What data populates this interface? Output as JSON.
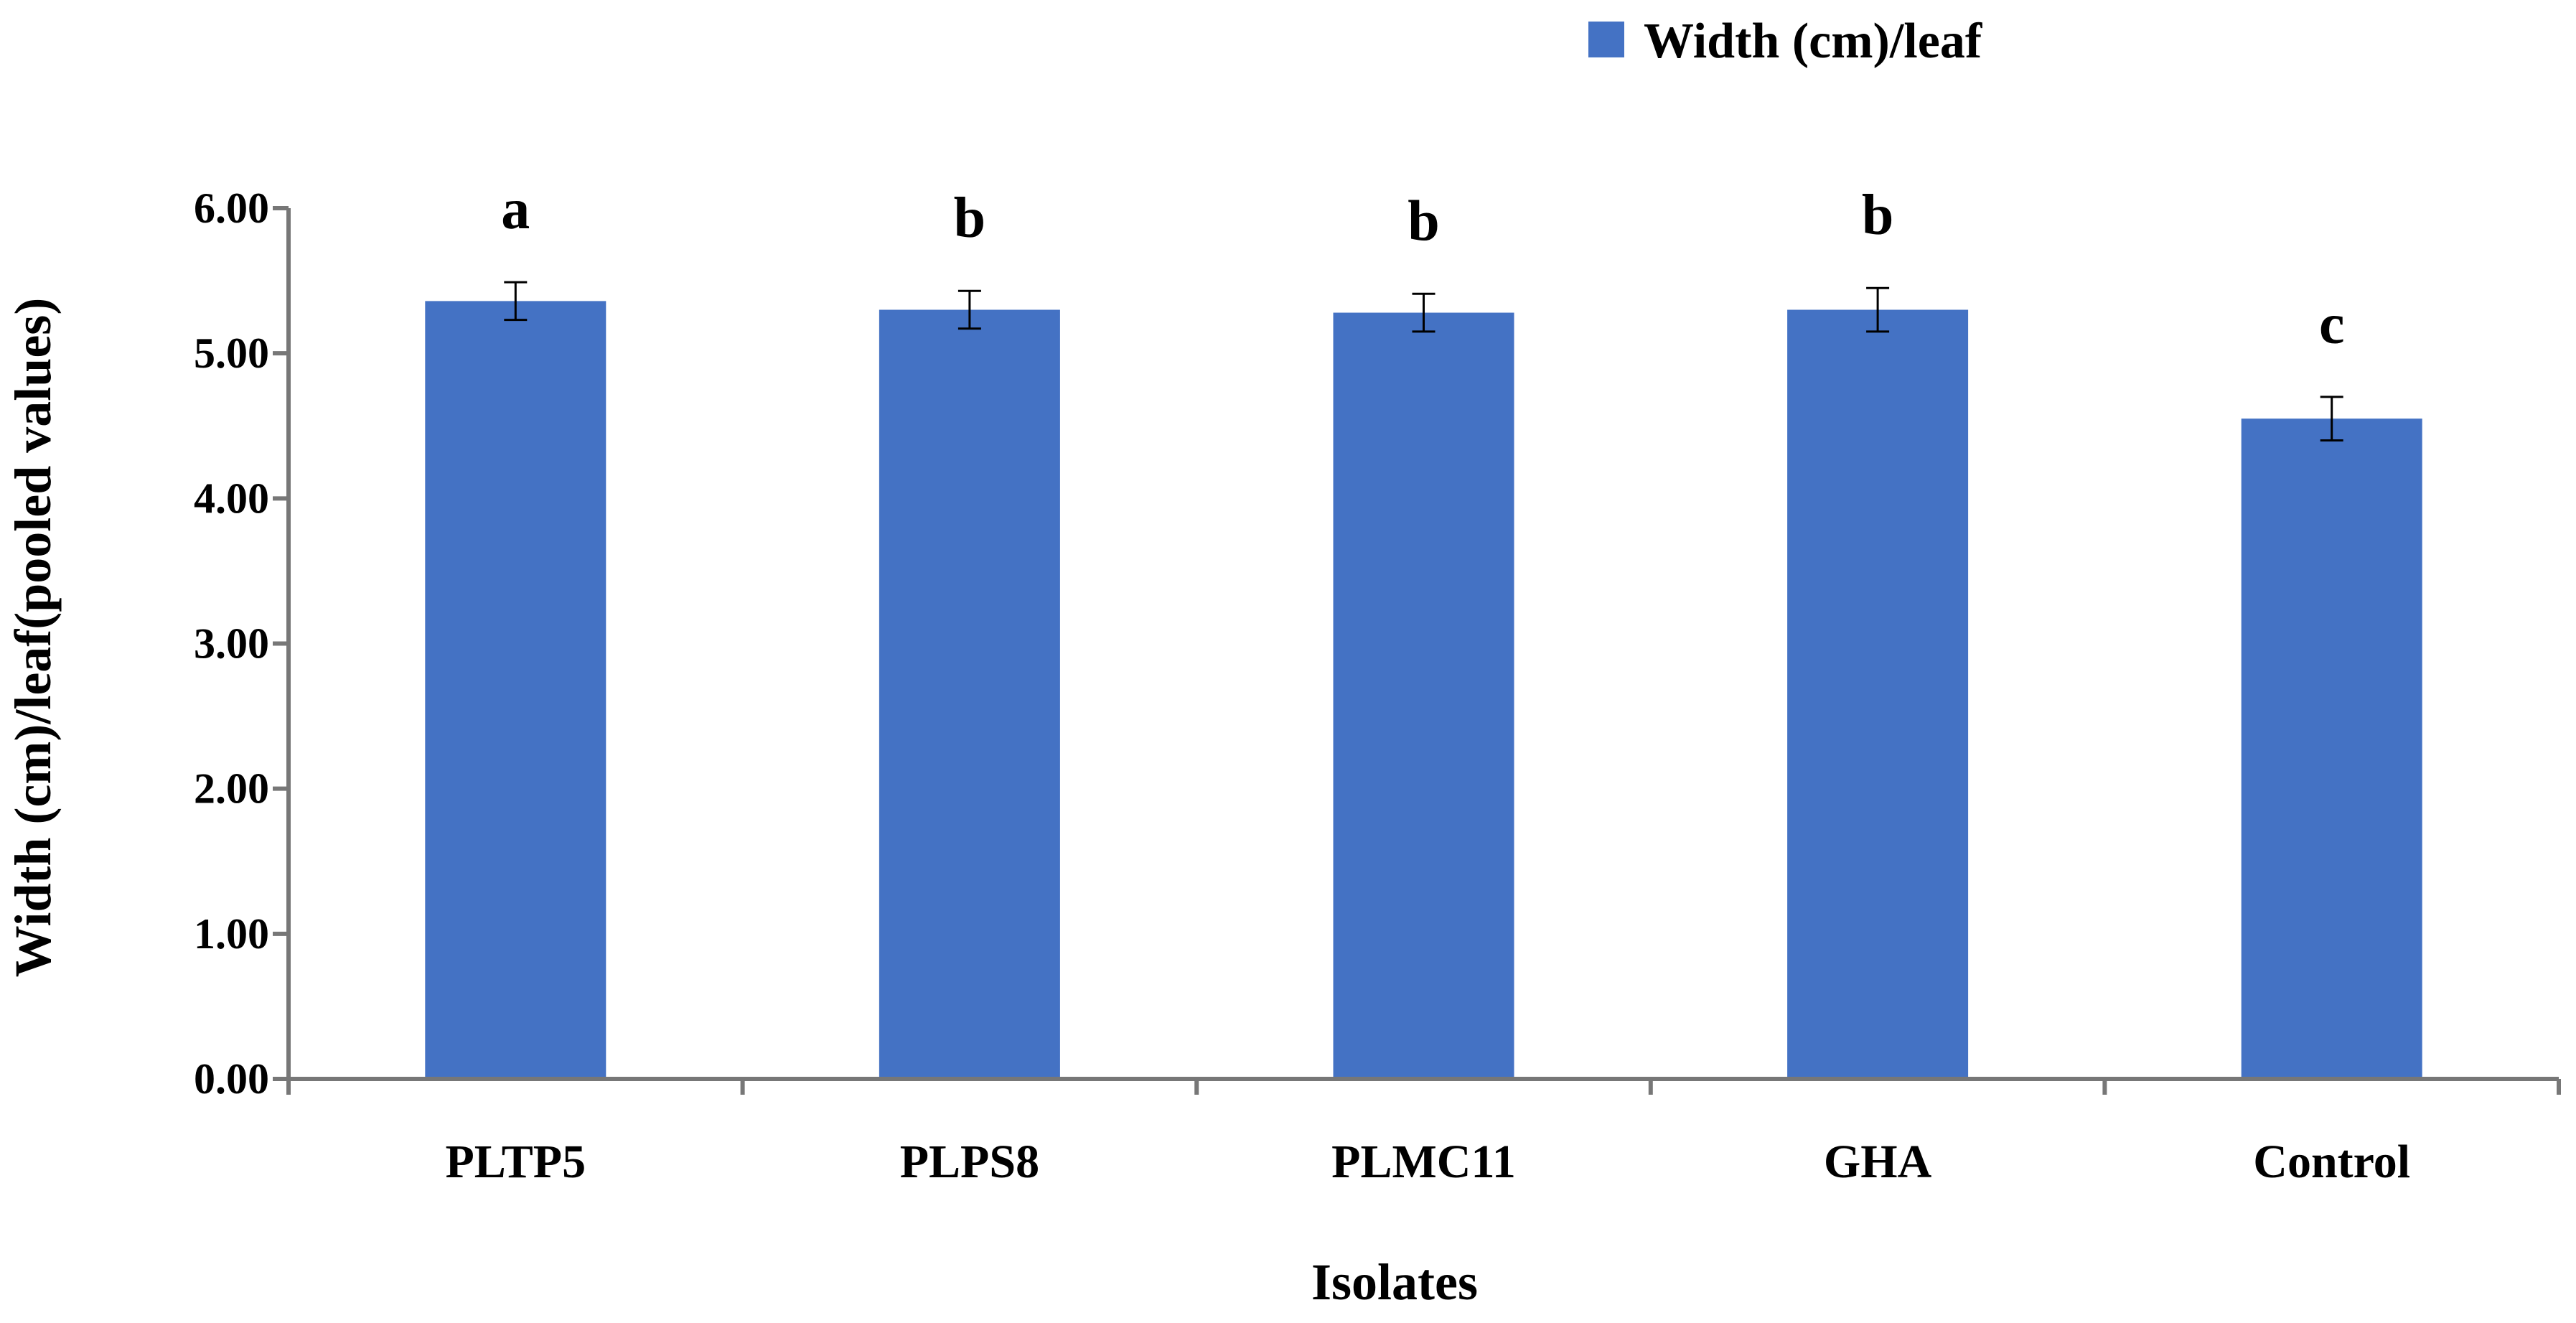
{
  "chart_data": {
    "type": "bar",
    "title": "",
    "xlabel": "Isolates",
    "ylabel": "Width (cm)/leaf(pooled values)",
    "ylim": [
      0,
      6
    ],
    "yticks": [
      "0.00",
      "1.00",
      "2.00",
      "3.00",
      "4.00",
      "5.00",
      "6.00"
    ],
    "grid": false,
    "legend_position": "top-right",
    "series": [
      {
        "name": "Width (cm)/leaf",
        "color": "#4472C4",
        "values": [
          5.36,
          5.3,
          5.28,
          5.3,
          4.55
        ],
        "errors": [
          0.13,
          0.13,
          0.13,
          0.15,
          0.15
        ]
      }
    ],
    "categories": [
      "PLTP5",
      "PLPS8",
      "PLMC11",
      "GHA",
      "Control"
    ],
    "significance": [
      "a",
      "b",
      "b",
      "b",
      "c"
    ]
  }
}
